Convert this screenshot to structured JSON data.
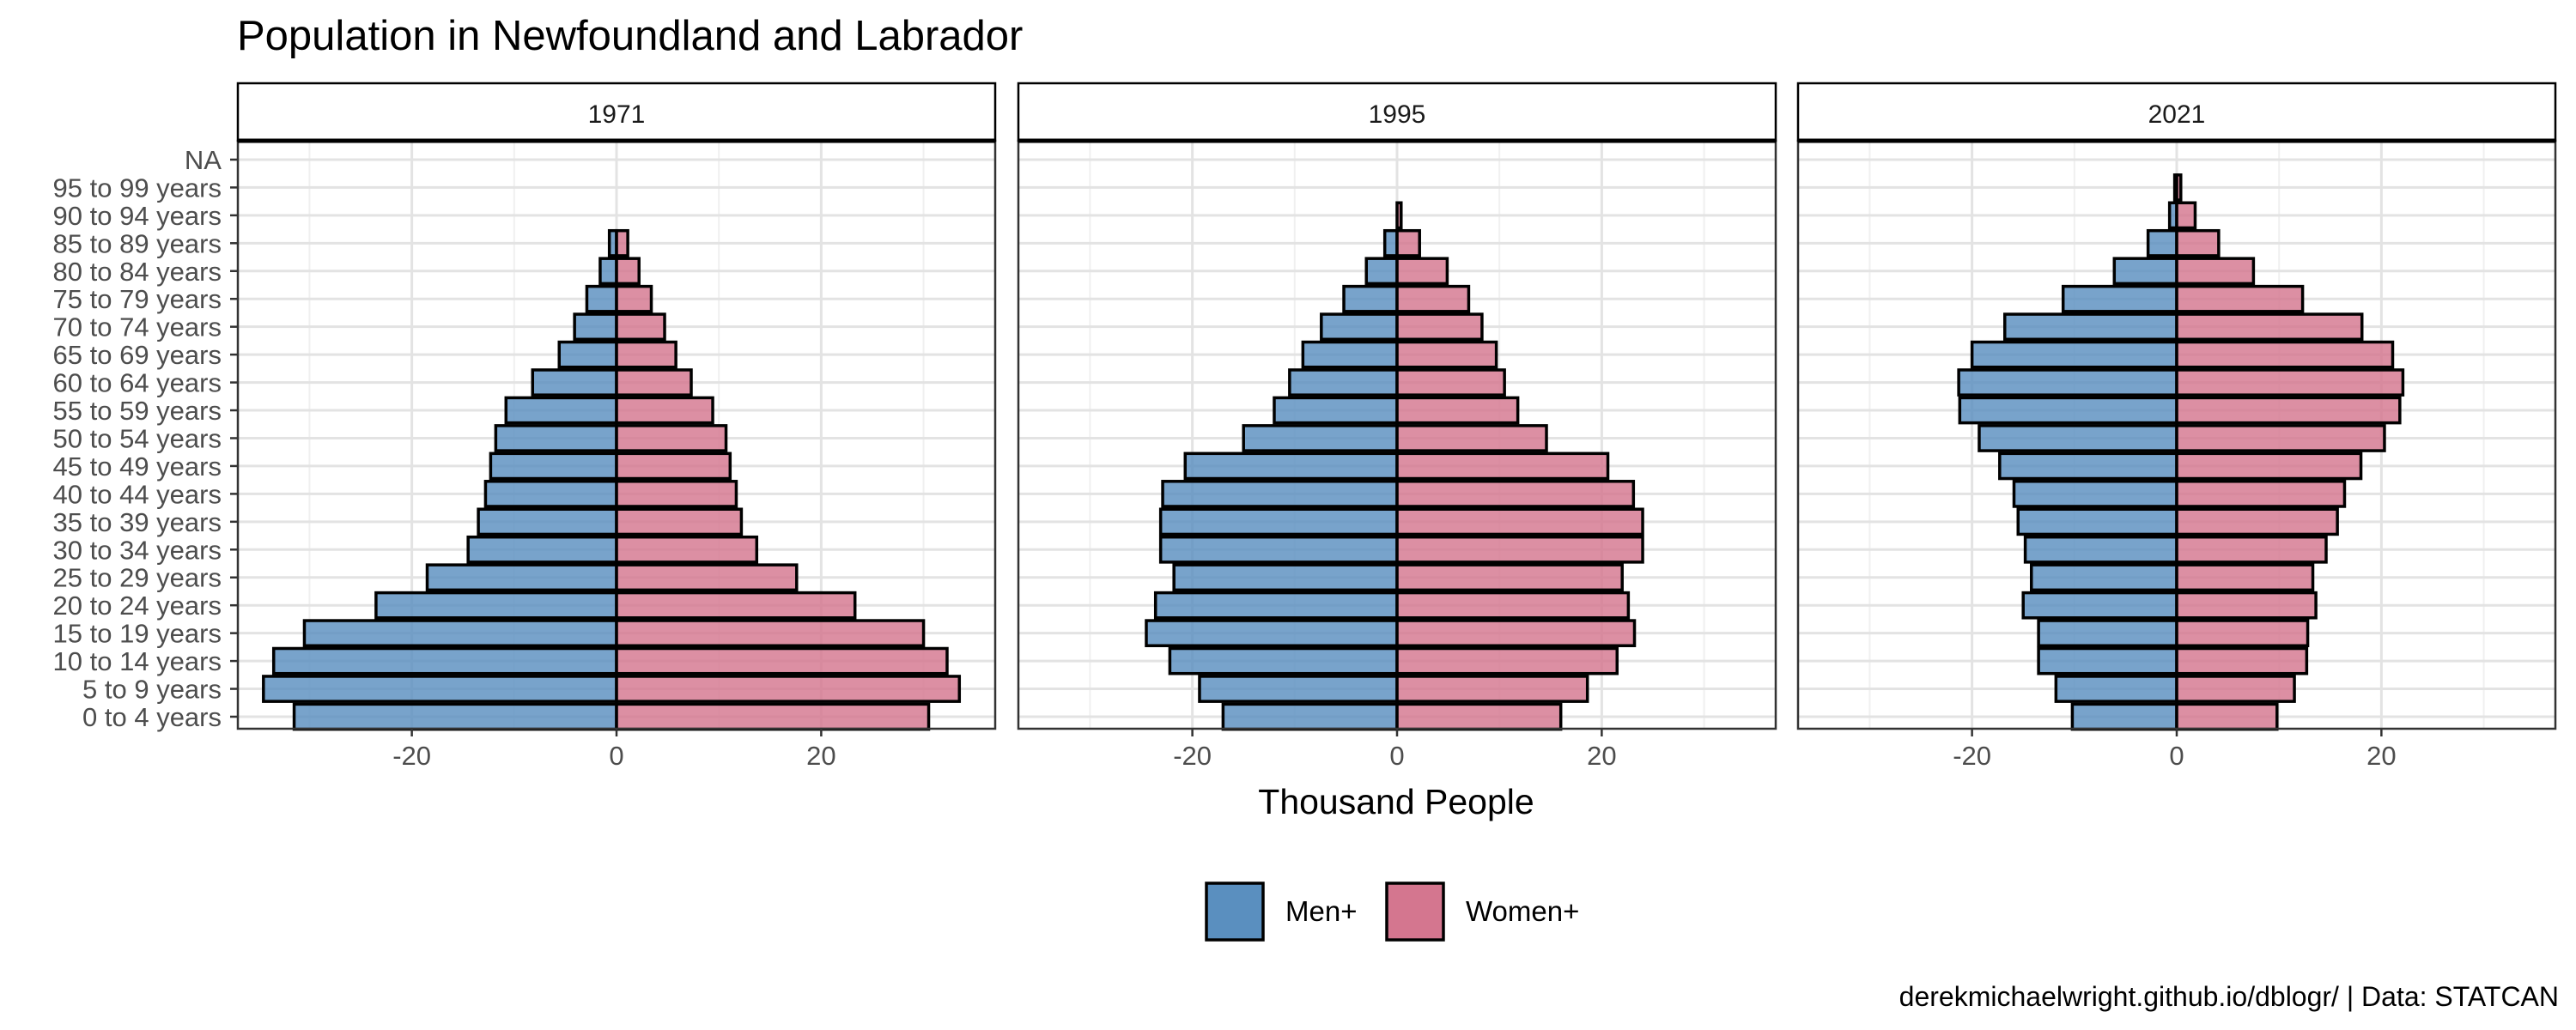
{
  "chart_data": {
    "type": "bar",
    "title": "Population in Newfoundland and Labrador",
    "xlabel": "Thousand People",
    "ylabel": "",
    "caption": "derekmichaelwright.github.io/dblogr/ | Data: STATCAN",
    "xlim": [
      -37,
      37
    ],
    "x_ticks": [
      -20,
      0,
      20
    ],
    "x_tick_labels": [
      "-20",
      "0",
      "20"
    ],
    "grid": true,
    "legend_position": "bottom",
    "categories": [
      "0 to 4 years",
      "5 to 9 years",
      "10 to 14 years",
      "15 to 19 years",
      "20 to 24 years",
      "25 to 29 years",
      "30 to 34 years",
      "35 to 39 years",
      "40 to 44 years",
      "45 to 49 years",
      "50 to 54 years",
      "55 to 59 years",
      "60 to 64 years",
      "65 to 69 years",
      "70 to 74 years",
      "75 to 79 years",
      "80 to 84 years",
      "85 to 89 years",
      "90 to 94 years",
      "95 to 99 years",
      "NA"
    ],
    "series_styles": [
      {
        "name": "Men+",
        "color": "#5a8fbf"
      },
      {
        "name": "Women+",
        "color": "#d4768f"
      }
    ],
    "panels": [
      {
        "title": "1971",
        "series": [
          {
            "name": "Men+",
            "values": [
              -31.5,
              -34.5,
              -33.5,
              -30.5,
              -23.5,
              -18.5,
              -14.5,
              -13.5,
              -12.8,
              -12.3,
              -11.8,
              -10.8,
              -8.2,
              -5.6,
              -4.1,
              -2.9,
              -1.6,
              -0.7,
              0,
              0,
              0
            ]
          },
          {
            "name": "Women+",
            "values": [
              30.5,
              33.5,
              32.3,
              30.0,
              23.3,
              17.6,
              13.7,
              12.2,
              11.7,
              11.1,
              10.7,
              9.4,
              7.3,
              5.8,
              4.7,
              3.4,
              2.2,
              1.1,
              0,
              0,
              0
            ]
          }
        ]
      },
      {
        "title": "1995",
        "series": [
          {
            "name": "Men+",
            "values": [
              -17.0,
              -19.3,
              -22.2,
              -24.5,
              -23.6,
              -21.8,
              -23.1,
              -23.1,
              -22.9,
              -20.7,
              -15.0,
              -12.0,
              -10.5,
              -9.2,
              -7.4,
              -5.2,
              -3.0,
              -1.2,
              0,
              0,
              0
            ]
          },
          {
            "name": "Women+",
            "values": [
              16.0,
              18.6,
              21.5,
              23.2,
              22.6,
              22.0,
              24.0,
              24.0,
              23.1,
              20.6,
              14.6,
              11.8,
              10.5,
              9.7,
              8.3,
              7.0,
              4.9,
              2.2,
              0.4,
              0,
              0
            ]
          }
        ]
      },
      {
        "title": "2021",
        "series": [
          {
            "name": "Men+",
            "values": [
              -10.2,
              -11.8,
              -13.5,
              -13.5,
              -15.0,
              -14.2,
              -14.8,
              -15.5,
              -15.9,
              -17.3,
              -19.3,
              -21.2,
              -21.3,
              -20.0,
              -16.8,
              -11.1,
              -6.1,
              -2.8,
              -0.7,
              -0.2,
              0
            ]
          },
          {
            "name": "Women+",
            "values": [
              9.8,
              11.5,
              12.7,
              12.8,
              13.6,
              13.3,
              14.6,
              15.7,
              16.4,
              18.0,
              20.3,
              21.8,
              22.1,
              21.1,
              18.1,
              12.3,
              7.5,
              4.1,
              1.8,
              0.4,
              0
            ]
          }
        ]
      }
    ]
  }
}
